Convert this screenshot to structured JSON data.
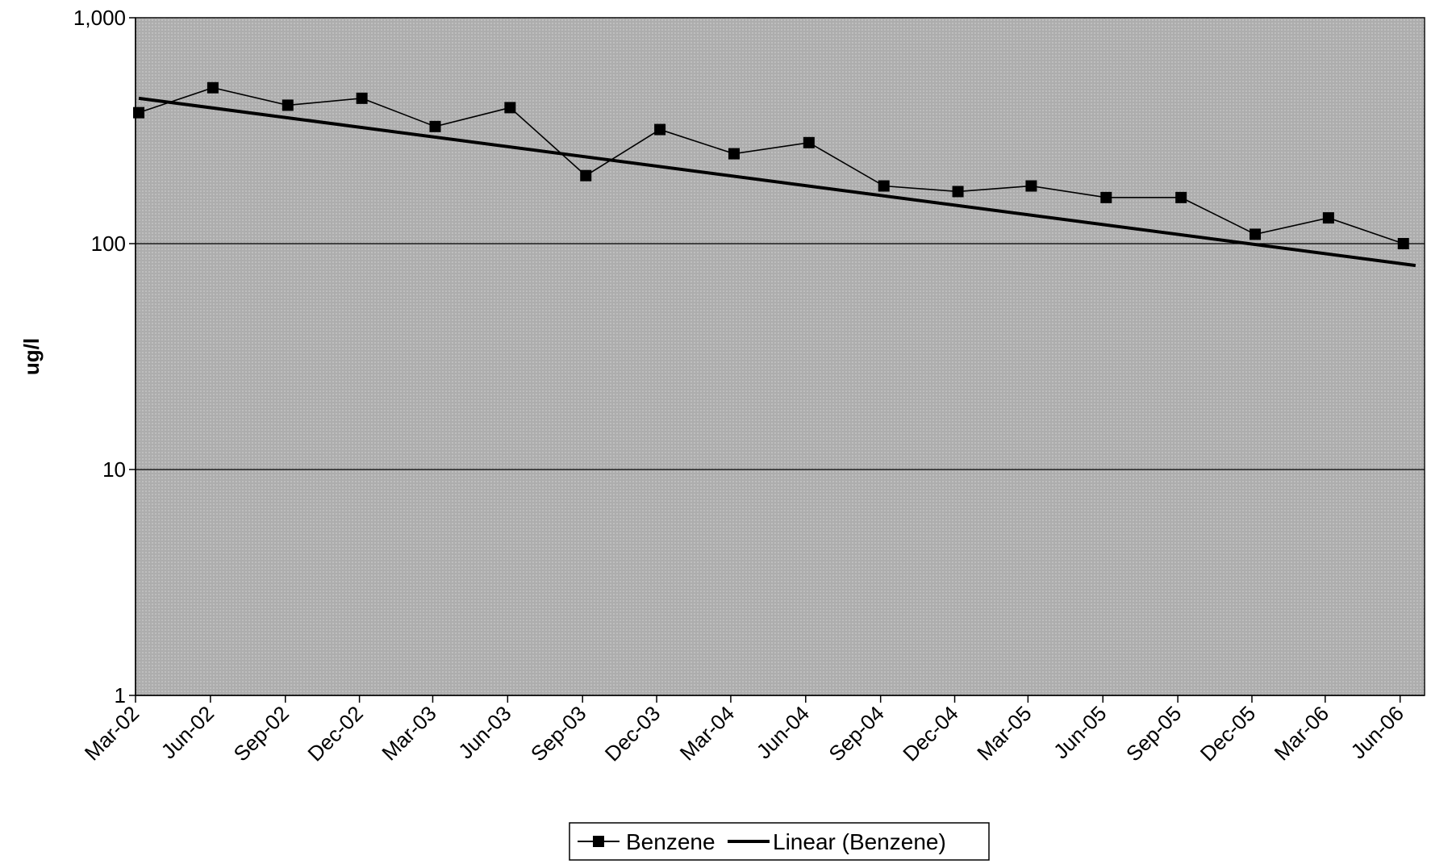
{
  "chart_data": {
    "type": "line",
    "title": "",
    "xlabel": "",
    "ylabel": "ug/l",
    "yscale": "log",
    "ylim": [
      1,
      1000
    ],
    "ytick_labels": [
      "1,000",
      "100",
      "10",
      "1"
    ],
    "ytick_values": [
      1000,
      100,
      10,
      1
    ],
    "xlim": [
      "2002-03-01",
      "2006-07-01"
    ],
    "xtick_labels": [
      "Mar-02",
      "Jun-02",
      "Sep-02",
      "Dec-02",
      "Mar-03",
      "Jun-03",
      "Sep-03",
      "Dec-03",
      "Mar-04",
      "Jun-04",
      "Sep-04",
      "Dec-04",
      "Mar-05",
      "Jun-05",
      "Sep-05",
      "Dec-05",
      "Mar-06",
      "Jun-06"
    ],
    "xtick_dates": [
      "2002-03-01",
      "2002-06-01",
      "2002-09-01",
      "2002-12-01",
      "2003-03-01",
      "2003-06-01",
      "2003-09-01",
      "2003-12-01",
      "2004-03-01",
      "2004-06-01",
      "2004-09-01",
      "2004-12-01",
      "2005-03-01",
      "2005-06-01",
      "2005-09-01",
      "2005-12-01",
      "2006-03-01",
      "2006-06-01"
    ],
    "grid": true,
    "legend_position": "bottom",
    "series": [
      {
        "name": "Benzene",
        "marker": "square",
        "color": "#000000",
        "x": [
          "2002-03-05",
          "2002-06-04",
          "2002-09-04",
          "2002-12-04",
          "2003-03-04",
          "2003-06-04",
          "2003-09-05",
          "2003-12-05",
          "2004-03-05",
          "2004-06-05",
          "2004-09-05",
          "2004-12-05",
          "2005-03-05",
          "2005-06-05",
          "2005-09-05",
          "2005-12-05",
          "2006-03-05",
          "2006-06-05"
        ],
        "y": [
          380,
          490,
          410,
          440,
          330,
          400,
          200,
          320,
          250,
          280,
          180,
          170,
          180,
          160,
          160,
          110,
          130,
          100
        ]
      },
      {
        "name": "Linear (Benzene)",
        "type": "trendline",
        "color": "#000000",
        "x": [
          "2002-03-05",
          "2006-06-20"
        ],
        "y": [
          440,
          80
        ]
      }
    ]
  },
  "legend": {
    "items": [
      "Benzene",
      "Linear (Benzene)"
    ]
  }
}
